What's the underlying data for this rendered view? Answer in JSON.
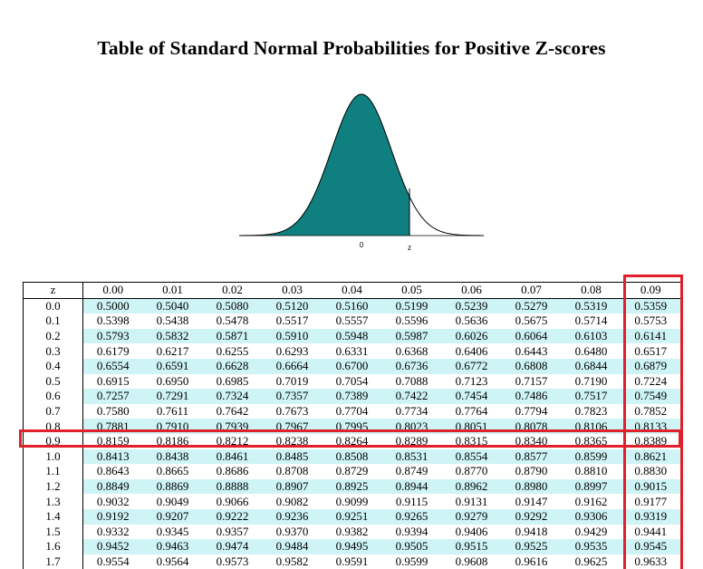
{
  "title": "Table of Standard Normal Probabilities for Positive Z-scores",
  "figure": {
    "zero_label": "0",
    "z_label": "z",
    "fill_color": "#0f7f7f"
  },
  "highlight_color": "#e0202a",
  "row_tint": "#cff4f6",
  "table": {
    "header": [
      "z",
      "0.00",
      "0.01",
      "0.02",
      "0.03",
      "0.04",
      "0.05",
      "0.06",
      "0.07",
      "0.08",
      "0.09"
    ],
    "rows": [
      [
        "0.0",
        "0.5000",
        "0.5040",
        "0.5080",
        "0.5120",
        "0.5160",
        "0.5199",
        "0.5239",
        "0.5279",
        "0.5319",
        "0.5359"
      ],
      [
        "0.1",
        "0.5398",
        "0.5438",
        "0.5478",
        "0.5517",
        "0.5557",
        "0.5596",
        "0.5636",
        "0.5675",
        "0.5714",
        "0.5753"
      ],
      [
        "0.2",
        "0.5793",
        "0.5832",
        "0.5871",
        "0.5910",
        "0.5948",
        "0.5987",
        "0.6026",
        "0.6064",
        "0.6103",
        "0.6141"
      ],
      [
        "0.3",
        "0.6179",
        "0.6217",
        "0.6255",
        "0.6293",
        "0.6331",
        "0.6368",
        "0.6406",
        "0.6443",
        "0.6480",
        "0.6517"
      ],
      [
        "0.4",
        "0.6554",
        "0.6591",
        "0.6628",
        "0.6664",
        "0.6700",
        "0.6736",
        "0.6772",
        "0.6808",
        "0.6844",
        "0.6879"
      ],
      [
        "0.5",
        "0.6915",
        "0.6950",
        "0.6985",
        "0.7019",
        "0.7054",
        "0.7088",
        "0.7123",
        "0.7157",
        "0.7190",
        "0.7224"
      ],
      [
        "0.6",
        "0.7257",
        "0.7291",
        "0.7324",
        "0.7357",
        "0.7389",
        "0.7422",
        "0.7454",
        "0.7486",
        "0.7517",
        "0.7549"
      ],
      [
        "0.7",
        "0.7580",
        "0.7611",
        "0.7642",
        "0.7673",
        "0.7704",
        "0.7734",
        "0.7764",
        "0.7794",
        "0.7823",
        "0.7852"
      ],
      [
        "0.8",
        "0.7881",
        "0.7910",
        "0.7939",
        "0.7967",
        "0.7995",
        "0.8023",
        "0.8051",
        "0.8078",
        "0.8106",
        "0.8133"
      ],
      [
        "0.9",
        "0.8159",
        "0.8186",
        "0.8212",
        "0.8238",
        "0.8264",
        "0.8289",
        "0.8315",
        "0.8340",
        "0.8365",
        "0.8389"
      ],
      [
        "1.0",
        "0.8413",
        "0.8438",
        "0.8461",
        "0.8485",
        "0.8508",
        "0.8531",
        "0.8554",
        "0.8577",
        "0.8599",
        "0.8621"
      ],
      [
        "1.1",
        "0.8643",
        "0.8665",
        "0.8686",
        "0.8708",
        "0.8729",
        "0.8749",
        "0.8770",
        "0.8790",
        "0.8810",
        "0.8830"
      ],
      [
        "1.2",
        "0.8849",
        "0.8869",
        "0.8888",
        "0.8907",
        "0.8925",
        "0.8944",
        "0.8962",
        "0.8980",
        "0.8997",
        "0.9015"
      ],
      [
        "1.3",
        "0.9032",
        "0.9049",
        "0.9066",
        "0.9082",
        "0.9099",
        "0.9115",
        "0.9131",
        "0.9147",
        "0.9162",
        "0.9177"
      ],
      [
        "1.4",
        "0.9192",
        "0.9207",
        "0.9222",
        "0.9236",
        "0.9251",
        "0.9265",
        "0.9279",
        "0.9292",
        "0.9306",
        "0.9319"
      ],
      [
        "1.5",
        "0.9332",
        "0.9345",
        "0.9357",
        "0.9370",
        "0.9382",
        "0.9394",
        "0.9406",
        "0.9418",
        "0.9429",
        "0.9441"
      ],
      [
        "1.6",
        "0.9452",
        "0.9463",
        "0.9474",
        "0.9484",
        "0.9495",
        "0.9505",
        "0.9515",
        "0.9525",
        "0.9535",
        "0.9545"
      ],
      [
        "1.7",
        "0.9554",
        "0.9564",
        "0.9573",
        "0.9582",
        "0.9591",
        "0.9599",
        "0.9608",
        "0.9616",
        "0.9625",
        "0.9633"
      ]
    ],
    "highlighted_row": "0.9",
    "highlighted_column": "0.09"
  }
}
